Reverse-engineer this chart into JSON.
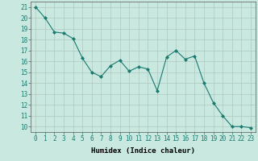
{
  "title": "",
  "xlabel": "Humidex (Indice chaleur)",
  "x": [
    0,
    1,
    2,
    3,
    4,
    5,
    6,
    7,
    8,
    9,
    10,
    11,
    12,
    13,
    14,
    15,
    16,
    17,
    18,
    19,
    20,
    21,
    22,
    23
  ],
  "y": [
    21,
    20,
    18.7,
    18.6,
    18.1,
    16.3,
    15.0,
    14.6,
    15.6,
    16.1,
    15.1,
    15.5,
    15.3,
    13.3,
    16.4,
    17.0,
    16.2,
    16.5,
    14.0,
    12.2,
    11.0,
    10.0,
    10.0,
    9.9
  ],
  "xlim": [
    -0.5,
    23.5
  ],
  "ylim": [
    9.5,
    21.5
  ],
  "yticks": [
    10,
    11,
    12,
    13,
    14,
    15,
    16,
    17,
    18,
    19,
    20,
    21
  ],
  "xticks": [
    0,
    1,
    2,
    3,
    4,
    5,
    6,
    7,
    8,
    9,
    10,
    11,
    12,
    13,
    14,
    15,
    16,
    17,
    18,
    19,
    20,
    21,
    22,
    23
  ],
  "line_color": "#1a7a6e",
  "marker_color": "#1a7a6e",
  "bg_color": "#c8e8e0",
  "grid_color": "#b0c8c0",
  "label_fontsize": 6.5,
  "tick_fontsize": 5.5
}
